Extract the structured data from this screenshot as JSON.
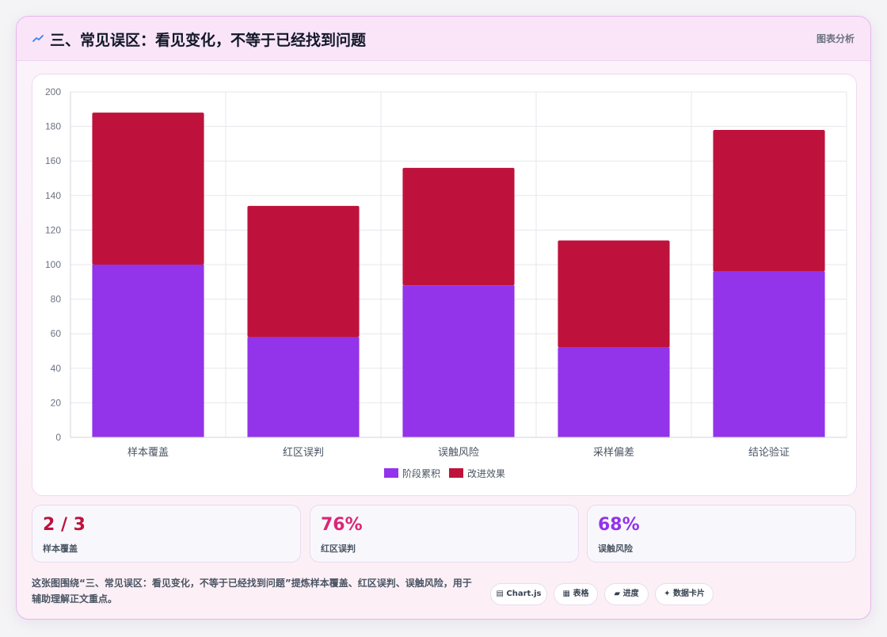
{
  "header": {
    "icon": "trend-line-icon",
    "title": "三、常见误区：看见变化，不等于已经找到问题",
    "tag": "图表分析"
  },
  "chart_data": {
    "type": "bar",
    "stacked": true,
    "categories": [
      "样本覆盖",
      "红区误判",
      "误触风险",
      "采样偏差",
      "结论验证"
    ],
    "series": [
      {
        "name": "阶段累积",
        "color": "#9333ea",
        "values": [
          100,
          58,
          88,
          52,
          96
        ]
      },
      {
        "name": "改进效果",
        "color": "#be123c",
        "values": [
          88,
          76,
          68,
          62,
          82
        ]
      }
    ],
    "ylim": [
      0,
      200
    ],
    "yticks": [
      0,
      20,
      40,
      60,
      80,
      100,
      120,
      140,
      160,
      180,
      200
    ],
    "grid": true,
    "legend": "bottom"
  },
  "stats": [
    {
      "value": "2 / 3",
      "label": "样本覆盖",
      "color": "#be123c"
    },
    {
      "value": "76%",
      "label": "红区误判",
      "color": "#db2777"
    },
    {
      "value": "68%",
      "label": "误触风险",
      "color": "#9333ea"
    }
  ],
  "description": "这张图围绕“三、常见误区：看见变化，不等于已经找到问题”提炼样本覆盖、红区误判、误触风险，用于辅助理解正文重点。",
  "pills": [
    {
      "icon": "▤",
      "label": "Chart.js"
    },
    {
      "icon": "▦",
      "label": "表格"
    },
    {
      "icon": "▰",
      "label": "进度"
    },
    {
      "icon": "✦",
      "label": "数据卡片"
    }
  ]
}
